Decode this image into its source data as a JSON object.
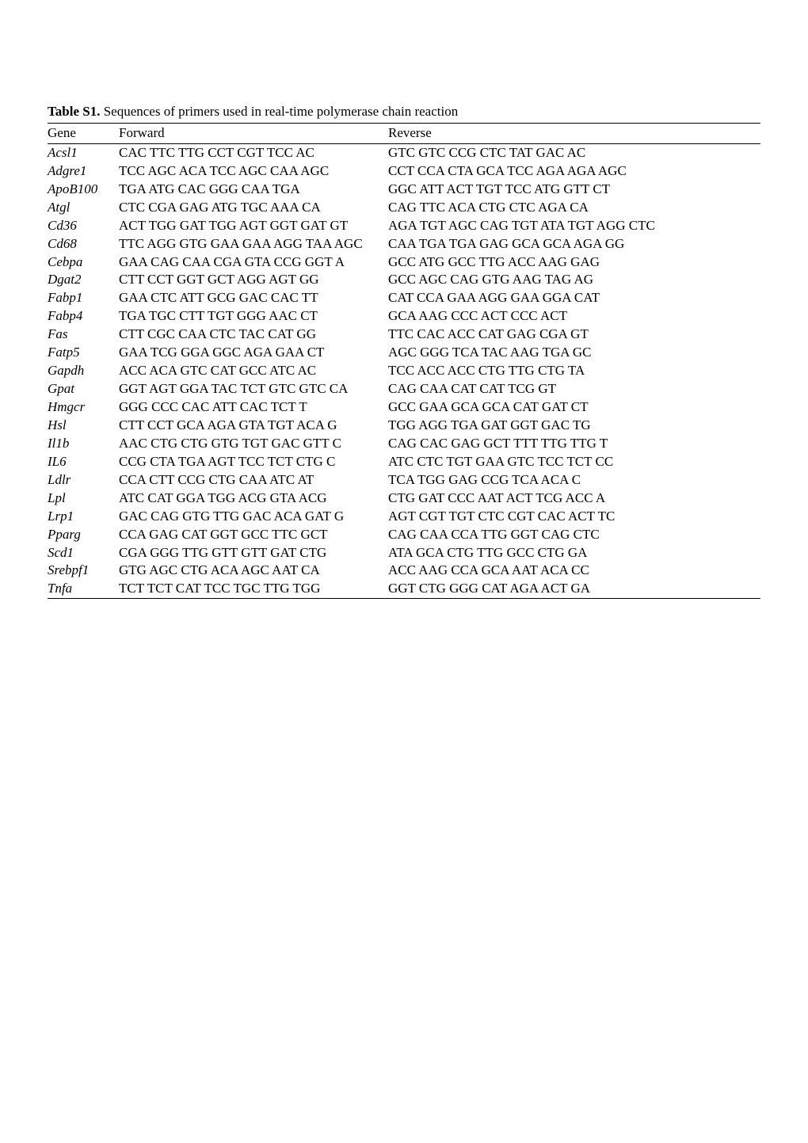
{
  "caption": {
    "label": "Table S1.",
    "text": " Sequences of primers used in real-time polymerase chain reaction"
  },
  "table": {
    "headers": [
      "Gene",
      "Forward",
      "Reverse"
    ],
    "rows": [
      {
        "gene": "Acsl1",
        "fwd": "CAC TTC TTG CCT CGT TCC AC",
        "rev": "GTC GTC CCG CTC TAT GAC AC"
      },
      {
        "gene": "Adgre1",
        "fwd": "TCC AGC ACA TCC AGC CAA AGC",
        "rev": "CCT CCA CTA GCA TCC AGA AGA AGC"
      },
      {
        "gene": "ApoB100",
        "fwd": "TGA ATG CAC GGG CAA TGA",
        "rev": "GGC ATT ACT TGT TCC ATG GTT CT"
      },
      {
        "gene": "Atgl",
        "fwd": "CTC CGA GAG ATG TGC AAA CA",
        "rev": "CAG TTC ACA CTG CTC AGA CA"
      },
      {
        "gene": "Cd36",
        "fwd": "ACT TGG GAT TGG AGT GGT GAT GT",
        "rev": "AGA TGT AGC CAG TGT ATA TGT AGG CTC"
      },
      {
        "gene": "Cd68",
        "fwd": "TTC AGG GTG GAA GAA AGG TAA AGC",
        "rev": "CAA TGA TGA GAG GCA GCA AGA GG"
      },
      {
        "gene": "Cebpa",
        "fwd": "GAA CAG CAA CGA GTA CCG GGT A",
        "rev": "GCC ATG GCC TTG ACC AAG GAG"
      },
      {
        "gene": "Dgat2",
        "fwd": "CTT CCT GGT GCT AGG AGT GG",
        "rev": "GCC AGC CAG GTG AAG TAG AG"
      },
      {
        "gene": "Fabp1",
        "fwd": "GAA CTC ATT GCG GAC CAC TT",
        "rev": "CAT CCA GAA AGG GAA GGA CAT"
      },
      {
        "gene": "Fabp4",
        "fwd": "TGA TGC CTT TGT GGG AAC CT",
        "rev": "GCA AAG CCC ACT CCC ACT"
      },
      {
        "gene": "Fas",
        "fwd": "CTT CGC CAA CTC TAC CAT GG",
        "rev": "TTC CAC ACC CAT GAG CGA GT"
      },
      {
        "gene": "Fatp5",
        "fwd": "GAA TCG GGA GGC AGA GAA CT",
        "rev": "AGC GGG TCA TAC AAG TGA GC"
      },
      {
        "gene": "Gapdh",
        "fwd": "ACC ACA GTC CAT GCC ATC AC",
        "rev": "TCC ACC ACC CTG TTG CTG TA"
      },
      {
        "gene": "Gpat",
        "fwd": "GGT AGT GGA TAC TCT GTC GTC CA",
        "rev": "CAG CAA CAT CAT TCG GT"
      },
      {
        "gene": "Hmgcr",
        "fwd": "GGG CCC CAC ATT CAC TCT T",
        "rev": "GCC GAA GCA GCA CAT GAT CT"
      },
      {
        "gene": "Hsl",
        "fwd": "CTT CCT GCA AGA GTA TGT ACA G",
        "rev": "TGG AGG TGA GAT GGT GAC TG"
      },
      {
        "gene": "Il1b",
        "fwd": "AAC CTG CTG GTG TGT GAC GTT C",
        "rev": "CAG CAC GAG GCT TTT TTG TTG T"
      },
      {
        "gene": "IL6",
        "fwd": "CCG CTA TGA AGT TCC TCT CTG C",
        "rev": "ATC CTC TGT GAA GTC TCC TCT CC"
      },
      {
        "gene": "Ldlr",
        "fwd": "CCA CTT CCG CTG CAA ATC AT",
        "rev": "TCA TGG GAG CCG TCA ACA C"
      },
      {
        "gene": "Lpl",
        "fwd": "ATC CAT GGA TGG ACG GTA ACG",
        "rev": "CTG GAT CCC AAT ACT TCG ACC A"
      },
      {
        "gene": "Lrp1",
        "fwd": "GAC CAG GTG TTG GAC ACA GAT G",
        "rev": "AGT CGT TGT CTC CGT CAC ACT TC"
      },
      {
        "gene": "Pparg",
        "fwd": "CCA GAG CAT GGT GCC TTC GCT",
        "rev": "CAG CAA CCA TTG GGT CAG CTC"
      },
      {
        "gene": "Scd1",
        "fwd": "CGA GGG TTG GTT GTT GAT CTG",
        "rev": "ATA GCA CTG TTG GCC CTG GA"
      },
      {
        "gene": "Srebpf1",
        "fwd": "GTG AGC CTG ACA AGC AAT CA",
        "rev": "ACC AAG CCA GCA AAT ACA CC"
      },
      {
        "gene": "Tnfa",
        "fwd": "TCT TCT CAT TCC TGC TTG TGG",
        "rev": "GGT CTG GGG CAT AGA ACT GA"
      }
    ]
  }
}
